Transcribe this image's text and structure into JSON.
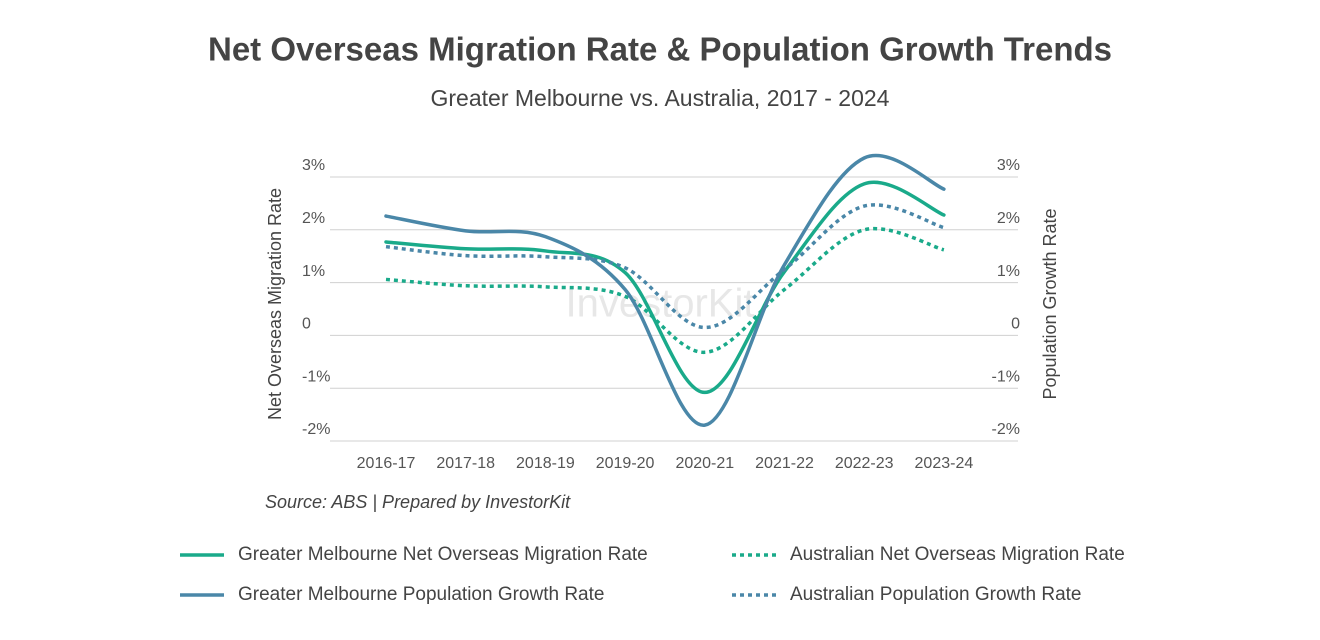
{
  "chart_data": {
    "type": "line",
    "title": "Net Overseas Migration Rate & Population Growth Trends",
    "subtitle": "Greater Melbourne vs. Australia, 2017 - 2024",
    "y_label": "Net Overseas Migration Rate",
    "y2_label": "Population Growth Rate",
    "source": "Source: ABS | Prepared by InvestorKit",
    "watermark": "InvestorKit",
    "categories": [
      "2016-17",
      "2017-18",
      "2018-19",
      "2019-20",
      "2020-21",
      "2021-22",
      "2022-23",
      "2023-24"
    ],
    "ylim": [
      -2,
      3
    ],
    "yticks": [
      {
        "value": 3,
        "label": "3%"
      },
      {
        "value": 2,
        "label": "2%"
      },
      {
        "value": 1,
        "label": "1%"
      },
      0,
      {
        "value": -1,
        "label": "-1%"
      },
      {
        "value": -2,
        "label": "-2%"
      }
    ],
    "y2lim": [
      -2,
      3
    ],
    "y2ticks": [
      {
        "value": 3,
        "label": "3%"
      },
      {
        "value": 2,
        "label": "2%"
      },
      {
        "value": 1,
        "label": "1%"
      },
      0,
      {
        "value": -1,
        "label": "-1%"
      },
      {
        "value": -2,
        "label": "-2%"
      }
    ],
    "grid": true,
    "series": [
      {
        "name": "Greater Melbourne Net Overseas Migration Rate",
        "color": "#1aaa8a",
        "style": "solid",
        "values": [
          1.77,
          1.64,
          1.6,
          1.19,
          -1.08,
          1.21,
          2.87,
          2.28
        ]
      },
      {
        "name": "Australian Net Overseas Migration Rate",
        "color": "#1aaa8a",
        "style": "dotted",
        "values": [
          1.06,
          0.94,
          0.92,
          0.74,
          -0.32,
          0.87,
          2.0,
          1.62
        ]
      },
      {
        "name": "Greater Melbourne Population Growth Rate",
        "color": "#4a87a8",
        "style": "solid",
        "axis": "y2",
        "values": [
          2.26,
          1.98,
          1.87,
          0.87,
          -1.7,
          1.34,
          3.36,
          2.77
        ]
      },
      {
        "name": "Australian Population Growth Rate",
        "color": "#4a87a8",
        "style": "dotted",
        "axis": "y2",
        "values": [
          1.68,
          1.51,
          1.49,
          1.28,
          0.15,
          1.25,
          2.45,
          2.04
        ]
      }
    ]
  }
}
